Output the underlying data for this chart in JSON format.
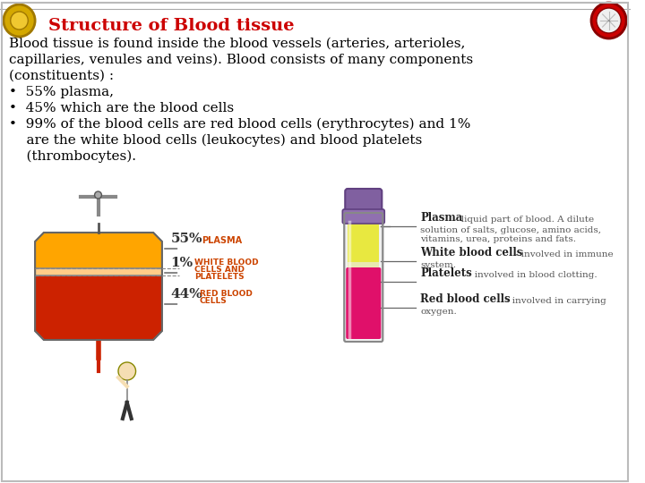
{
  "background_color": "#ffffff",
  "title": "Structure of Blood tissue",
  "title_color": "#cc0000",
  "title_fontsize": 14,
  "title_bold": true,
  "body_text": [
    "Blood tissue is found inside the blood vessels (arteries, arterioles,",
    "capillaries, venules and veins). Blood consists of many components",
    "(constituents) :",
    "•  55% plasma,",
    "•  45% which are the blood cells",
    "•  99% of the blood cells are red blood cells (erythrocytes) and 1%",
    "    are the white blood cells (leukocytes) and blood platelets",
    "    (thrombocytes)."
  ],
  "body_fontsize": 11,
  "body_color": "#000000",
  "left_diagram": {
    "bag_top_color": "#ffa500",
    "bag_bottom_color": "#cc0000",
    "label_55_pct": "55%",
    "label_55_text": "PLASMA",
    "label_1_pct": "1%",
    "label_1_text": "WHITE BLOOD\nCELLS AND\nPLATELETS",
    "label_44_pct": "44%",
    "label_44_text": "RED BLOOD\nCELLS"
  },
  "right_diagram": {
    "tube_cap_color": "#8b7bb5",
    "tube_plasma_color": "#f5f07a",
    "tube_wbc_color": "#f0f0c0",
    "tube_rbc_color": "#e01070",
    "labels": [
      {
        "bold": "Plasma",
        "normal": "- liquid part of blood. A dilute\nsolution of salts, glucose, amino acids,\nvitamins, urea, proteins and fats."
      },
      {
        "bold": "White blood cells",
        "normal": "- involved in immune\nsystem."
      },
      {
        "bold": "Platelets",
        "normal": "- involved in blood clotting."
      },
      {
        "bold": "Red blood cells",
        "normal": "- involved in carrying\noxygen."
      }
    ]
  },
  "icon_left_color": "#c8a800",
  "icon_right_color": "#cc0000",
  "border_color": "#cccccc"
}
